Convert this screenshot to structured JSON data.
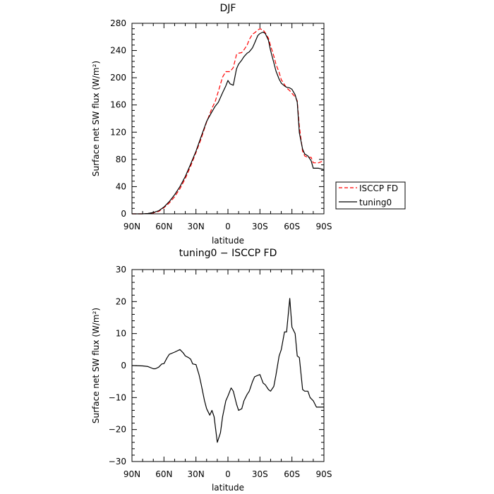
{
  "chart_data": [
    {
      "type": "line",
      "title": "DJF",
      "xlabel": "latitude",
      "ylabel": "Surface net SW flux (W/m²)",
      "xlim": [
        -90,
        90
      ],
      "ylim": [
        0,
        280
      ],
      "x_tick_values": [
        -90,
        -60,
        -30,
        0,
        30,
        60,
        90
      ],
      "x_tick_labels": [
        "90N",
        "60N",
        "30N",
        "0",
        "30S",
        "60S",
        "90S"
      ],
      "y_tick_values": [
        0,
        40,
        80,
        120,
        160,
        200,
        240,
        280
      ],
      "y_tick_labels": [
        "0",
        "40",
        "80",
        "120",
        "160",
        "200",
        "240",
        "280"
      ],
      "legend": "right",
      "series": [
        {
          "name": "ISCCP FD",
          "color": "#ff0000",
          "style": "dashed",
          "x": [
            -90,
            -80,
            -75,
            -70,
            -65,
            -60,
            -55,
            -50,
            -45,
            -40,
            -35,
            -30,
            -25,
            -20,
            -15,
            -12,
            -9,
            -5,
            -2,
            0,
            2,
            5,
            8,
            10,
            13,
            15,
            18,
            20,
            23,
            25,
            28,
            30,
            33,
            35,
            38,
            40,
            43,
            45,
            48,
            50,
            53,
            55,
            58,
            60,
            63,
            65,
            67,
            70,
            72,
            75,
            78,
            80,
            83,
            85,
            90
          ],
          "values": [
            0,
            0,
            0.5,
            1.5,
            3.5,
            9,
            16,
            25,
            37,
            52,
            70,
            90,
            111,
            135,
            155,
            165,
            180,
            201,
            209,
            209,
            209,
            215,
            234,
            236,
            237,
            241,
            248,
            256,
            264,
            266,
            270,
            272,
            270,
            266,
            258,
            247,
            232,
            220,
            208,
            197,
            190,
            185,
            181,
            177,
            172,
            166,
            128,
            92,
            85,
            83,
            83,
            75,
            75,
            75,
            78
          ]
        },
        {
          "name": "tuning0",
          "color": "#000000",
          "style": "solid",
          "x": [
            -90,
            -80,
            -75,
            -70,
            -65,
            -60,
            -55,
            -50,
            -45,
            -40,
            -35,
            -30,
            -25,
            -20,
            -15,
            -12,
            -9,
            -5,
            -2,
            0,
            2,
            5,
            8,
            10,
            13,
            15,
            18,
            20,
            23,
            25,
            28,
            30,
            33,
            35,
            38,
            40,
            43,
            45,
            48,
            50,
            53,
            55,
            58,
            60,
            63,
            65,
            67,
            70,
            72,
            75,
            78,
            80,
            83,
            85,
            90
          ],
          "values": [
            0,
            0,
            0.5,
            2,
            4.5,
            10,
            18,
            28,
            40,
            55,
            73,
            92,
            114,
            136,
            150,
            158,
            164,
            178,
            188,
            196,
            191,
            189,
            213,
            220,
            226,
            231,
            236,
            238,
            244,
            251,
            262,
            265,
            267,
            265,
            255,
            240,
            222,
            210,
            198,
            192,
            188,
            186,
            185,
            183,
            175,
            164,
            119,
            95,
            88,
            85,
            78,
            67,
            67,
            67,
            65
          ]
        }
      ]
    },
    {
      "type": "line",
      "title": "tuning0 − ISCCP FD",
      "xlabel": "latitude",
      "ylabel": "Surface net SW flux (W/m²)",
      "xlim": [
        -90,
        90
      ],
      "ylim": [
        -30,
        30
      ],
      "x_tick_values": [
        -90,
        -60,
        -30,
        0,
        30,
        60,
        90
      ],
      "x_tick_labels": [
        "90N",
        "60N",
        "30N",
        "0",
        "30S",
        "60S",
        "90S"
      ],
      "y_tick_values": [
        -30,
        -20,
        -10,
        0,
        10,
        20,
        30
      ],
      "y_tick_labels": [
        "−30",
        "−20",
        "−10",
        "0",
        "10",
        "20",
        "30"
      ],
      "series": [
        {
          "color": "#000000",
          "style": "solid",
          "x": [
            -90,
            -80,
            -75,
            -70,
            -68,
            -65,
            -62,
            -60,
            -57,
            -55,
            -50,
            -45,
            -42,
            -40,
            -37,
            -35,
            -33,
            -30,
            -27,
            -25,
            -22,
            -20,
            -17,
            -15,
            -13,
            -10,
            -7,
            -5,
            -2,
            0,
            3,
            5,
            8,
            10,
            13,
            15,
            18,
            20,
            23,
            25,
            27,
            30,
            33,
            35,
            38,
            40,
            43,
            45,
            48,
            50,
            53,
            55,
            58,
            60,
            63,
            65,
            67,
            70,
            72,
            75,
            77,
            80,
            83,
            85,
            88,
            90
          ],
          "values": [
            0,
            -0.1,
            -0.3,
            -1,
            -1,
            -0.5,
            0.5,
            0.6,
            2.5,
            3.5,
            4.2,
            5,
            4,
            3,
            2.5,
            2,
            0.5,
            0.3,
            -3,
            -6,
            -11,
            -13.5,
            -15.5,
            -14,
            -16,
            -24,
            -21,
            -16,
            -11,
            -9.5,
            -7,
            -8,
            -12,
            -14,
            -13.5,
            -11,
            -9,
            -8,
            -5,
            -3.5,
            -3.2,
            -2.8,
            -5.5,
            -6,
            -7.5,
            -8,
            -6.5,
            -3,
            3,
            5,
            10.5,
            10.5,
            21,
            12,
            10,
            3,
            2.5,
            -7.5,
            -8,
            -8,
            -10,
            -11,
            -13,
            -13,
            -13,
            -13
          ]
        }
      ]
    }
  ]
}
